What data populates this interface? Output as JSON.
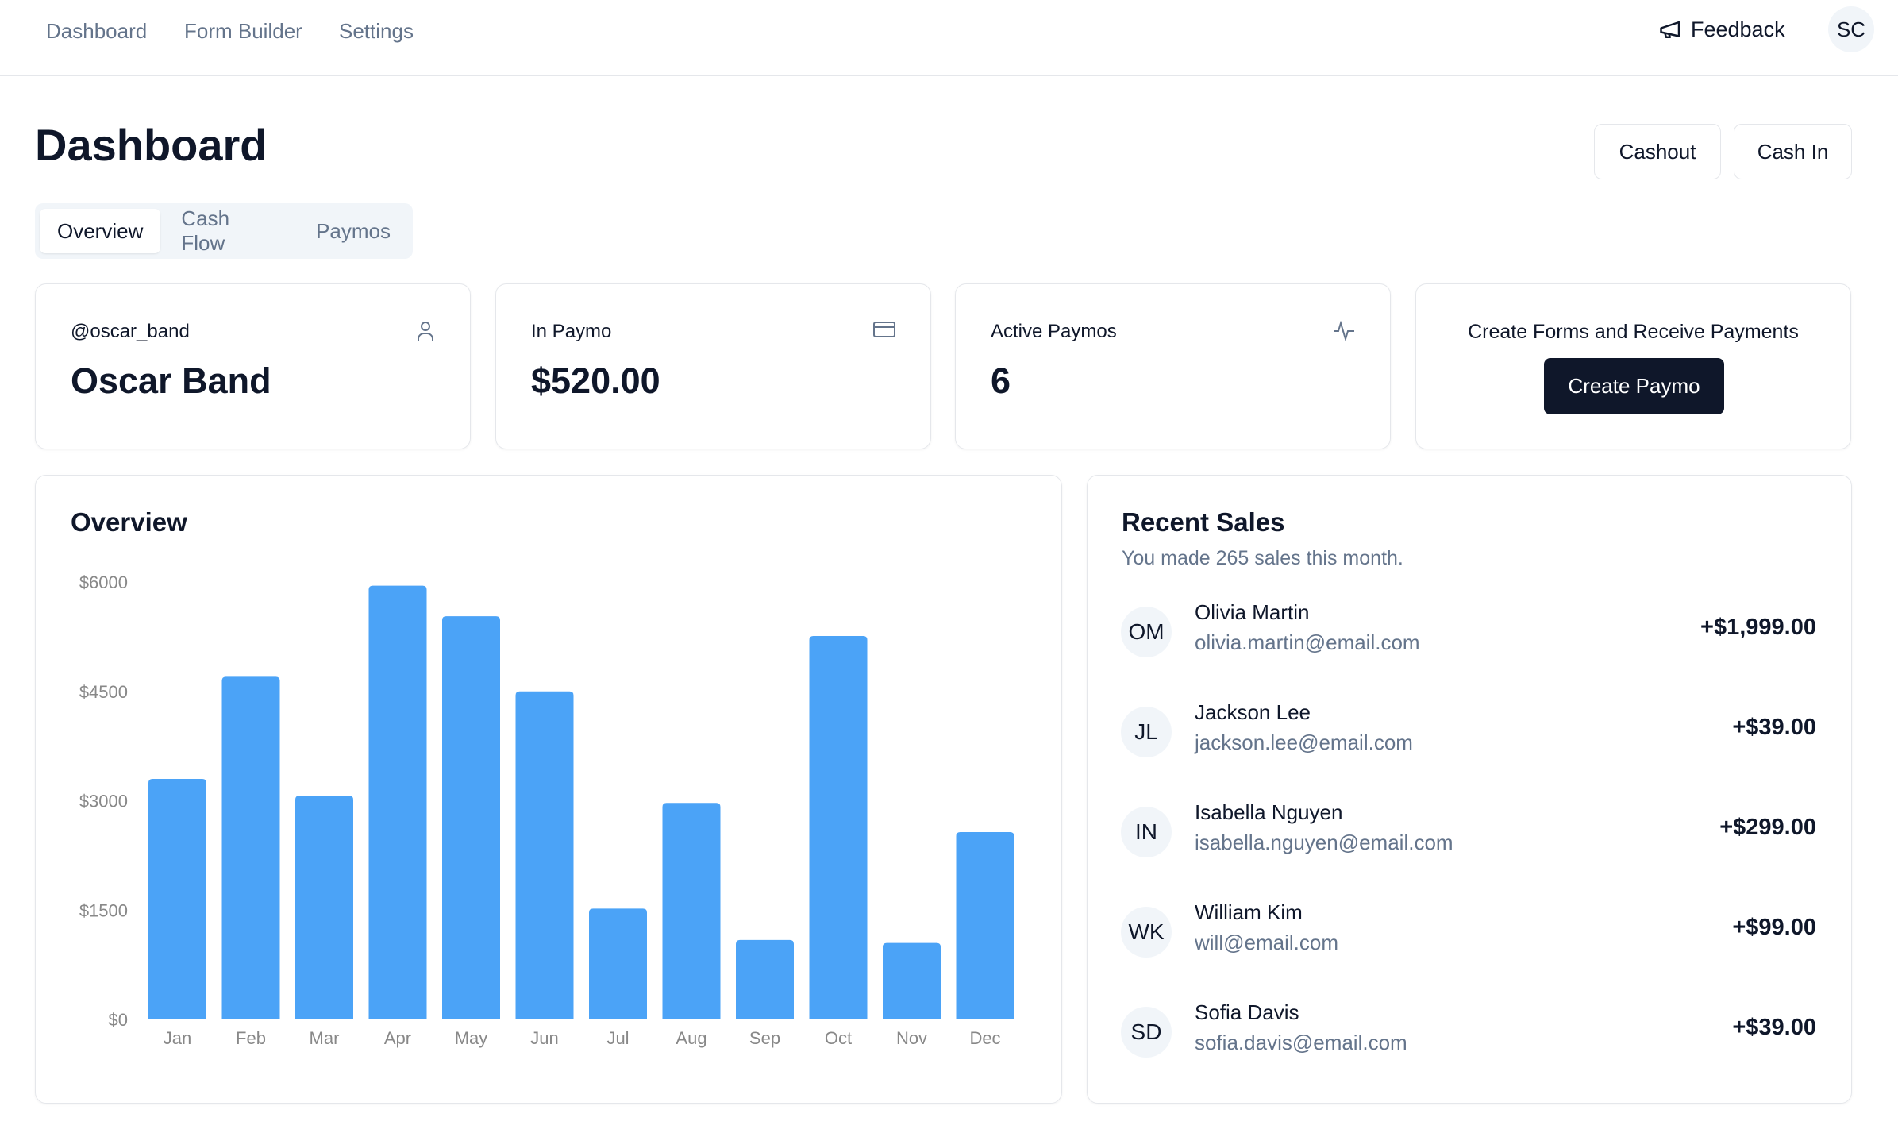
{
  "nav": {
    "items": [
      "Dashboard",
      "Form Builder",
      "Settings"
    ],
    "feedback": "Feedback",
    "feedback_icon": "megaphone-icon",
    "user_initials": "SC"
  },
  "header": {
    "title": "Dashboard",
    "cashout": "Cashout",
    "cash_in": "Cash In"
  },
  "tabs": [
    {
      "label": "Overview",
      "active": true
    },
    {
      "label": "Cash Flow"
    },
    {
      "label": "Paymos"
    }
  ],
  "cards": [
    {
      "label": "@oscar_band",
      "value": "Oscar Band",
      "icon": "user-icon"
    },
    {
      "label": "In Paymo",
      "value": "$520.00",
      "icon": "credit-card-icon"
    },
    {
      "label": "Active Paymos",
      "value": "6",
      "icon": "activity-icon"
    },
    {
      "label": "Create Forms and Receive Payments",
      "button": "Create Paymo"
    }
  ],
  "overview": {
    "title": "Overview"
  },
  "chart_data": {
    "type": "bar",
    "categories": [
      "Jan",
      "Feb",
      "Mar",
      "Apr",
      "May",
      "Jun",
      "Jul",
      "Aug",
      "Sep",
      "Oct",
      "Nov",
      "Dec"
    ],
    "values": [
      3300,
      4700,
      3070,
      5950,
      5530,
      4500,
      1520,
      2970,
      1090,
      5260,
      1050,
      2570
    ],
    "yticks": [
      "$0",
      "$1500",
      "$3000",
      "$4500",
      "$6000"
    ],
    "ylim": [
      0,
      6000
    ],
    "color": "#4ba3f7",
    "grid": false
  },
  "recent_sales": {
    "title": "Recent Sales",
    "subtitle": "You made 265 sales this month.",
    "rows": [
      {
        "initials": "OM",
        "name": "Olivia Martin",
        "email": "olivia.martin@email.com",
        "amount": "+$1,999.00"
      },
      {
        "initials": "JL",
        "name": "Jackson Lee",
        "email": "jackson.lee@email.com",
        "amount": "+$39.00"
      },
      {
        "initials": "IN",
        "name": "Isabella Nguyen",
        "email": "isabella.nguyen@email.com",
        "amount": "+$299.00"
      },
      {
        "initials": "WK",
        "name": "William Kim",
        "email": "will@email.com",
        "amount": "+$99.00"
      },
      {
        "initials": "SD",
        "name": "Sofia Davis",
        "email": "sofia.davis@email.com",
        "amount": "+$39.00"
      }
    ]
  }
}
